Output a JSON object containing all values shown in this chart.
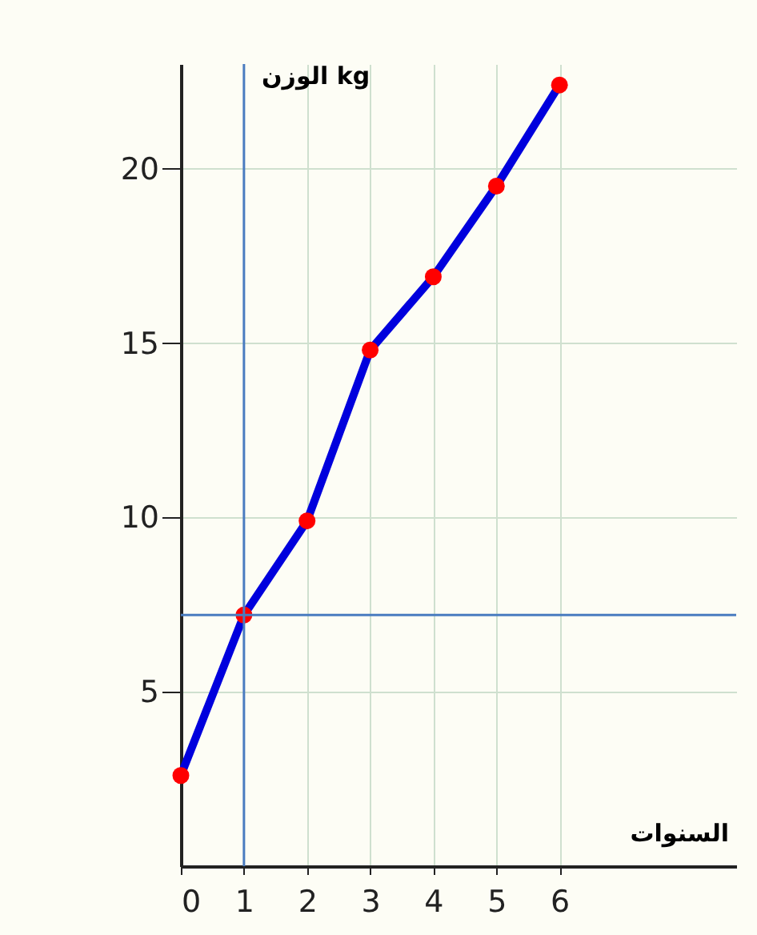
{
  "chart_data": {
    "type": "line",
    "xlabel": "السنوات",
    "ylabel": "الوزن kg",
    "x": [
      0,
      1,
      2,
      3,
      4,
      5,
      6
    ],
    "series": [
      {
        "color": "#0000dd",
        "colors": [
          "#ff0000",
          "#ff0000",
          "#ff0000",
          "#ff0000",
          "#ff0000",
          "#ff0000",
          "#ff0000"
        ],
        "values": [
          2.6,
          7.2,
          9.9,
          14.8,
          16.9,
          19.5,
          22.4
        ]
      }
    ],
    "marker": "circle",
    "line_style": "solid",
    "xlim": [
      0,
      8.8
    ],
    "xticks": [
      0,
      1,
      2,
      3,
      4,
      5,
      6
    ],
    "ylim": [
      0,
      23
    ],
    "yticks": [
      5,
      10,
      15,
      20
    ],
    "grid": true,
    "ref_lines": [
      {
        "axis": "x",
        "value": 1,
        "color": "#4a7cc0"
      },
      {
        "axis": "y",
        "value": 7.2,
        "color": "#4a7cc0"
      }
    ]
  }
}
